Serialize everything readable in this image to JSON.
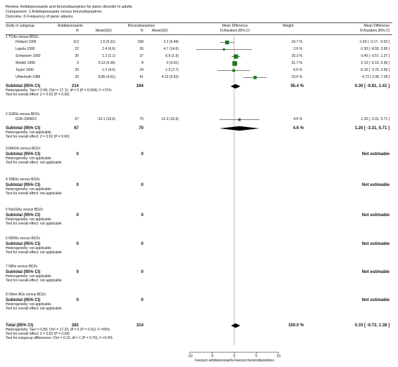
{
  "review": {
    "review_line": "Review:  Antidepressants and benzodiazepines for panic disorder in adults",
    "comparison_line": "Comparison:  1 Antidepressants versus benzodiazepines",
    "outcome_line": "Outcome:  6 Frequency of panic attacks"
  },
  "columns": {
    "study": "Study or subgroup",
    "antidep": "Antidepressants",
    "benzo": "Benzodiazepines",
    "n": "N",
    "mean_sd": "Mean(SD)",
    "md_header": "Mean Difference",
    "md_sub": "IV,Random,95% CI",
    "weight": "Weight",
    "md_header2": "Mean Difference",
    "md_sub2": "IV,Random,95% CI"
  },
  "subgroups": [
    {
      "title": "1 TCAs versus BDZs",
      "studies": [
        {
          "name": "Holland 1999",
          "n1": "113",
          "msd1": "1.5 (5.31)",
          "n2": "108",
          "msd2": "3.1 (6.49)",
          "weight": "18.7 %",
          "ci_text": "-1.60 [ -3.17, -0.03 ]"
        },
        {
          "name": "Lepola 1990",
          "n1": "22",
          "msd1": "2.4 (6.6)",
          "n2": "26",
          "msd2": "4.7 (14.6)",
          "weight": "2.6 %",
          "ci_text": "-2.30 [ -8.55, 3.95 ]"
        },
        {
          "name": "Schweizer 1993",
          "n1": "30",
          "msd1": "1.3 (2.1)",
          "n2": "37",
          "msd2": "0.9 (1.9)",
          "weight": "25.3 %",
          "ci_text": "0.40 [ -0.57, 1.37 ]"
        },
        {
          "name": "Sheikh 1999",
          "n1": "9",
          "msd1": "0.13 (0.35)",
          "n2": "8",
          "msd2": "0 (0.01)",
          "weight": "31.7 %",
          "ci_text": "0.13 [ -0.10, 0.36 ]"
        },
        {
          "name": "Taylor 1990",
          "n1": "20",
          "msd1": "1.2 (4.5)",
          "n2": "24",
          "msd2": "1.3 (7.7)",
          "weight": "6.6 %",
          "ci_text": "-0.10 [ -3.76, 3.56 ]"
        },
        {
          "name": "Uhlenhuth 1989",
          "n1": "20",
          "msd1": "8.85 (4.61)",
          "n2": "41",
          "msd2": "4.12 (5.62)",
          "weight": "10.5 %",
          "ci_text": "4.73 [ 2.08, 7.38 ]"
        }
      ],
      "subtotal_label": "Subtotal (95% CI)",
      "subtotal_n1": "214",
      "subtotal_n2": "244",
      "subtotal_weight": "95.4 %",
      "subtotal_ci_text": "0.30 [ -0.81, 1.41 ]",
      "het": "Heterogeneity: Tau² = 0.98; Chi² = 17.11, df = 5 (P = 0.004); I² =71%",
      "effect": "Test for overall effect: Z = 0.52 (P = 0.60)"
    },
    {
      "title": "2 SSRIs versus BDZs",
      "studies": [
        {
          "name": "GSK-29060/1",
          "n1": "67",
          "msd1": "-10.1 (10.6)",
          "n2": "70",
          "msd2": "-11.3 (15.9)",
          "weight": "4.6 %",
          "ci_text": "1.20 [ -3.31, 5.71 ]"
        }
      ],
      "subtotal_label": "Subtotal (95% CI)",
      "subtotal_n1": "67",
      "subtotal_n2": "70",
      "subtotal_weight": "4.6 %",
      "subtotal_ci_text": "1.20 [ -3.31, 5.71 ]",
      "het": "Heterogeneity: not applicable",
      "effect": "Test for overall effect: Z = 0.52 (P = 0.60)"
    },
    {
      "title": "3 MAOIs versus BDZs",
      "studies": [],
      "subtotal_label": "Subtotal (95% CI)",
      "subtotal_n1": "0",
      "subtotal_n2": "0",
      "subtotal_weight": "",
      "subtotal_ci_text": "Not estimable",
      "het": "Heterogeneity: not applicable",
      "effect": "Test for overall effect: not applicable"
    },
    {
      "title": "4 SNRIs versus BDZs",
      "studies": [],
      "subtotal_label": "Subtotal (95% CI)",
      "subtotal_n1": "0",
      "subtotal_n2": "0",
      "subtotal_weight": "",
      "subtotal_ci_text": "Not estimable",
      "het": "Heterogeneity: not applicable",
      "effect": "Test for overall effect: not applicable"
    },
    {
      "title": "5 NaSSAs versus BDZs",
      "studies": [],
      "subtotal_label": "Subtotal (95% CI)",
      "subtotal_n1": "0",
      "subtotal_n2": "0",
      "subtotal_weight": "",
      "subtotal_ci_text": "Not estimable",
      "het": "Heterogeneity: not applicable",
      "effect": "Test for overall effect: not applicable"
    },
    {
      "title": "6 NDRIs versus BDZs",
      "studies": [],
      "subtotal_label": "Subtotal (95% CI)",
      "subtotal_n1": "0",
      "subtotal_n2": "0",
      "subtotal_weight": "",
      "subtotal_ci_text": "Not estimable",
      "het": "Heterogeneity: not applicable",
      "effect": "Test for overall effect: not applicable"
    },
    {
      "title": "7 NRIs versus BDZs",
      "studies": [],
      "subtotal_label": "Subtotal (95% CI)",
      "subtotal_n1": "0",
      "subtotal_n2": "0",
      "subtotal_weight": "",
      "subtotal_ci_text": "Not estimable",
      "het": "Heterogeneity: not applicable",
      "effect": "Test for overall effect: not applicable"
    },
    {
      "title": "8 Other ADs versus BDZs",
      "studies": [],
      "subtotal_label": "Subtotal (95% CI)",
      "subtotal_n1": "0",
      "subtotal_n2": "0",
      "subtotal_weight": "",
      "subtotal_ci_text": "Not estimable",
      "het": "Heterogeneity: not applicable",
      "effect": "Test for overall effect: not applicable"
    }
  ],
  "total": {
    "label": "Total (95% CI)",
    "n1": "281",
    "n2": "314",
    "weight": "100.0 %",
    "ci_text": "0.33 [ -0.72, 1.38 ]",
    "het": "Heterogeneity: Tau² = 0.89; Chi² = 17.33, df = 6 (P = 0.01); I² =65%",
    "effect": "Test for overall effect: Z = 0.62 (P = 0.54)",
    "subgroup_diff": "Test for subgroup differences: Chi² = 0.15, df = 1 (P = 0.70), I² =0.0%"
  },
  "axis": {
    "favours_left": "Favours antidepressants",
    "favours_right": "Favours benzodiazepines"
  },
  "chart_data": {
    "type": "scatter",
    "xlim": [
      -10,
      10
    ],
    "ticks": [
      -10,
      -5,
      0,
      5,
      10
    ],
    "tick_labels": [
      "-10",
      "-5",
      "0",
      "5",
      "10"
    ],
    "studies": [
      {
        "name": "Holland 1999",
        "md": -1.6,
        "lo": -3.17,
        "hi": -0.03,
        "weight": 18.7
      },
      {
        "name": "Lepola 1990",
        "md": -2.3,
        "lo": -8.55,
        "hi": 3.95,
        "weight": 2.6
      },
      {
        "name": "Schweizer 1993",
        "md": 0.4,
        "lo": -0.57,
        "hi": 1.37,
        "weight": 25.3
      },
      {
        "name": "Sheikh 1999",
        "md": 0.13,
        "lo": -0.1,
        "hi": 0.36,
        "weight": 31.7
      },
      {
        "name": "Taylor 1990",
        "md": -0.1,
        "lo": -3.76,
        "hi": 3.56,
        "weight": 6.6
      },
      {
        "name": "Uhlenhuth 1989",
        "md": 4.73,
        "lo": 2.08,
        "hi": 7.38,
        "weight": 10.5
      },
      {
        "name": "GSK-29060/1",
        "md": 1.2,
        "lo": -3.31,
        "hi": 5.71,
        "weight": 4.6
      }
    ],
    "diamonds": [
      {
        "name": "Subtotal TCAs",
        "md": 0.3,
        "lo": -0.81,
        "hi": 1.41
      },
      {
        "name": "Subtotal SSRIs",
        "md": 1.2,
        "lo": -3.31,
        "hi": 5.71
      },
      {
        "name": "Total",
        "md": 0.33,
        "lo": -0.72,
        "hi": 1.38
      }
    ]
  }
}
